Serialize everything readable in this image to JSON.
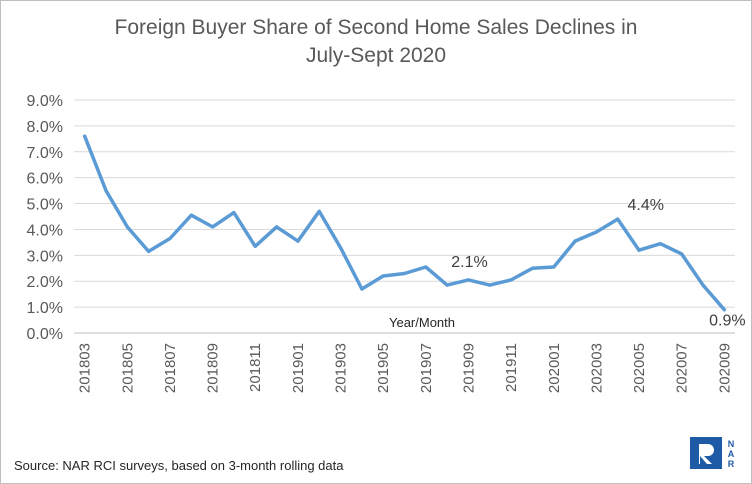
{
  "chart_data": {
    "type": "line",
    "title_line1": "Foreign Buyer Share of Second Home Sales Declines in",
    "title_line2": "July-Sept 2020",
    "xlabel": "Year/Month",
    "ylim": [
      0,
      9
    ],
    "yticks": [
      "0.0%",
      "1.0%",
      "2.0%",
      "3.0%",
      "4.0%",
      "5.0%",
      "6.0%",
      "7.0%",
      "8.0%",
      "9.0%"
    ],
    "x": [
      "201803",
      "201804",
      "201805",
      "201806",
      "201807",
      "201808",
      "201809",
      "201810",
      "201811",
      "201812",
      "201901",
      "201902",
      "201903",
      "201904",
      "201905",
      "201906",
      "201907",
      "201908",
      "201909",
      "201910",
      "201911",
      "201912",
      "202001",
      "202002",
      "202003",
      "202004",
      "202005",
      "202006",
      "202007",
      "202008",
      "202009"
    ],
    "xtick_labels": [
      "201803",
      "201805",
      "201807",
      "201809",
      "201811",
      "201901",
      "201903",
      "201905",
      "201907",
      "201909",
      "201911",
      "202001",
      "202003",
      "202005",
      "202007",
      "202009"
    ],
    "values": [
      7.6,
      5.5,
      4.1,
      3.15,
      3.65,
      4.55,
      4.1,
      4.65,
      3.35,
      4.1,
      3.55,
      4.7,
      3.3,
      1.7,
      2.2,
      2.3,
      2.55,
      1.85,
      2.05,
      1.85,
      2.05,
      2.5,
      2.55,
      3.55,
      3.9,
      4.4,
      3.2,
      3.45,
      3.05,
      1.85,
      0.9
    ],
    "annotations": [
      {
        "text": "2.1%",
        "index": 18
      },
      {
        "text": "4.4%",
        "index": 25
      },
      {
        "text": "0.9%",
        "index": 30
      }
    ],
    "grid": true,
    "line_color": "#5b9bd5"
  },
  "source": "Source: NAR RCI surveys, based on 3-month rolling data",
  "logo": {
    "text": "NAR",
    "color": "#1f5aa6"
  }
}
